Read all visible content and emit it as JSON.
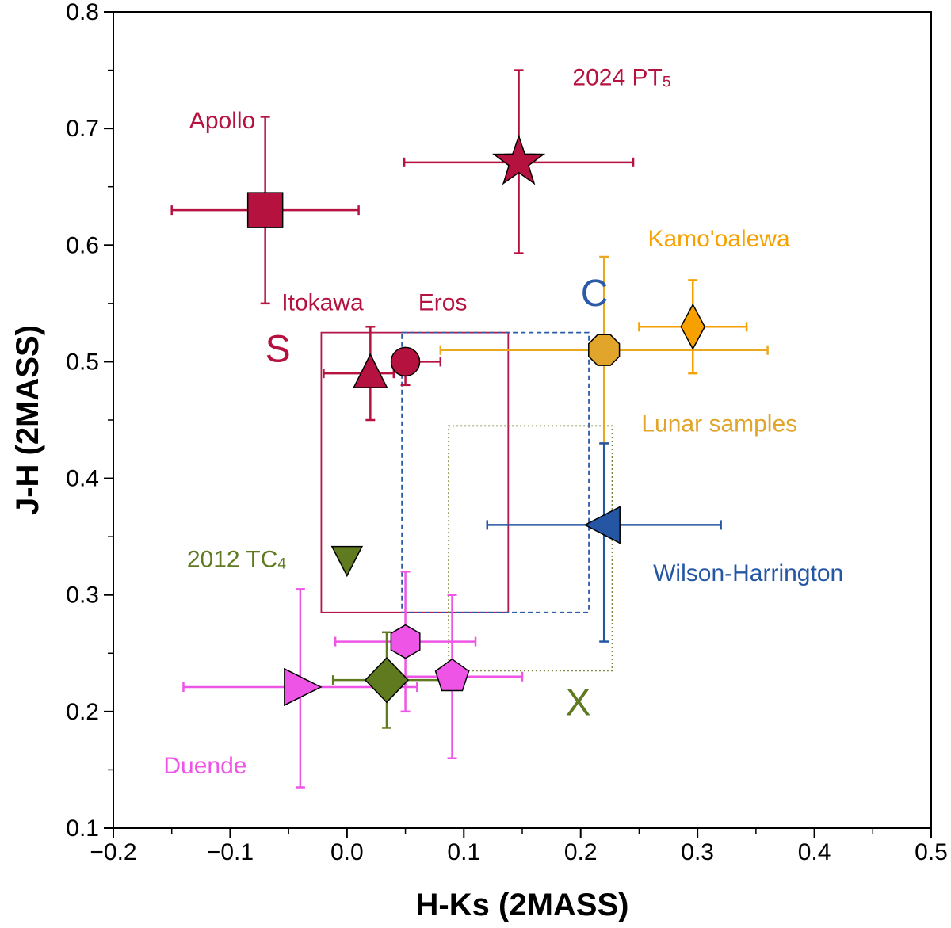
{
  "chart_data": {
    "type": "scatter",
    "xlabel": "H-Ks (2MASS)",
    "ylabel": "J-H (2MASS)",
    "xlim": [
      -0.2,
      0.5
    ],
    "ylim": [
      0.1,
      0.8
    ],
    "xticks": [
      -0.2,
      -0.1,
      0.0,
      0.1,
      0.2,
      0.3,
      0.4,
      0.5
    ],
    "xtick_labels": [
      "−0.2",
      "−0.1",
      "0.0",
      "0.1",
      "0.2",
      "0.3",
      "0.4",
      "0.5"
    ],
    "yticks": [
      0.1,
      0.2,
      0.3,
      0.4,
      0.5,
      0.6,
      0.7,
      0.8
    ],
    "ytick_labels": [
      "0.1",
      "0.2",
      "0.3",
      "0.4",
      "0.5",
      "0.6",
      "0.7",
      "0.8"
    ],
    "grid": false,
    "regions": [
      {
        "id": "S",
        "x": [
          -0.022,
          0.138
        ],
        "y": [
          0.285,
          0.525
        ],
        "color": "#b5174a",
        "style": "solid"
      },
      {
        "id": "C",
        "x": [
          0.047,
          0.207
        ],
        "y": [
          0.285,
          0.525
        ],
        "color": "#2a5aa8",
        "style": "dashed"
      },
      {
        "id": "X",
        "x": [
          0.087,
          0.227
        ],
        "y": [
          0.235,
          0.445
        ],
        "color": "#7a8a3c",
        "style": "dotted"
      }
    ],
    "points": [
      {
        "id": "apollo",
        "x": -0.07,
        "y": 0.63,
        "xerr": [
          0.08,
          0.08
        ],
        "yerr": [
          0.08,
          0.08
        ],
        "marker": "square",
        "color": "#b5123f",
        "ecolor": "#b5123f"
      },
      {
        "id": "pt5",
        "x": 0.147,
        "y": 0.671,
        "xerr": [
          0.098,
          0.098
        ],
        "yerr": [
          0.078,
          0.079
        ],
        "marker": "star",
        "color": "#b5123f",
        "ecolor": "#b5123f"
      },
      {
        "id": "itokawa",
        "x": 0.02,
        "y": 0.49,
        "xerr": [
          0.04,
          0.02
        ],
        "yerr": [
          0.04,
          0.04
        ],
        "marker": "triangle-up",
        "color": "#b5123f",
        "ecolor": "#b5123f"
      },
      {
        "id": "eros",
        "x": 0.05,
        "y": 0.5,
        "xerr": [
          0.0,
          0.03
        ],
        "yerr": [
          0.02,
          0.0
        ],
        "marker": "circle",
        "color": "#b5123f",
        "ecolor": "#b5123f"
      },
      {
        "id": "lunar",
        "x": 0.22,
        "y": 0.51,
        "xerr": [
          0.14,
          0.14
        ],
        "yerr": [
          0.08,
          0.08
        ],
        "marker": "octagon",
        "color": "#e0a52a",
        "ecolor": "#e8a820"
      },
      {
        "id": "kamooalewa",
        "x": 0.296,
        "y": 0.53,
        "xerr": [
          0.046,
          0.046
        ],
        "yerr": [
          0.04,
          0.04
        ],
        "marker": "diamond",
        "color": "#f6a100",
        "ecolor": "#f6a100"
      },
      {
        "id": "wh",
        "x": 0.22,
        "y": 0.36,
        "xerr": [
          0.1,
          0.1
        ],
        "yerr": [
          0.1,
          0.07
        ],
        "marker": "triangle-left",
        "color": "#2456a4",
        "ecolor": "#2456a4"
      },
      {
        "id": "tc4",
        "x": 0.0,
        "y": 0.33,
        "xerr": [
          0,
          0
        ],
        "yerr": [
          0,
          0
        ],
        "marker": "triangle-down",
        "color": "#5f7a1f",
        "ecolor": "#5f7a1f"
      },
      {
        "id": "duende_hex",
        "x": 0.05,
        "y": 0.26,
        "xerr": [
          0.06,
          0.06
        ],
        "yerr": [
          0.06,
          0.06
        ],
        "marker": "hexagon",
        "color": "#ee55e6",
        "ecolor": "#ee55e6"
      },
      {
        "id": "duende_pent",
        "x": 0.09,
        "y": 0.23,
        "xerr": [
          0.06,
          0.06
        ],
        "yerr": [
          0.07,
          0.07
        ],
        "marker": "pentagon",
        "color": "#ee55e6",
        "ecolor": "#ee55e6"
      },
      {
        "id": "duende_tri",
        "x": -0.04,
        "y": 0.221,
        "xerr": [
          0.1,
          0.1
        ],
        "yerr": [
          0.086,
          0.084
        ],
        "marker": "triangle-right",
        "color": "#ee55e6",
        "ecolor": "#ee55e6"
      },
      {
        "id": "x_diamond",
        "x": 0.034,
        "y": 0.227,
        "xerr": [
          0.046,
          0.046
        ],
        "yerr": [
          0.041,
          0.041
        ],
        "marker": "diamond-big",
        "color": "#5f7a1f",
        "ecolor": "#5f7a1f"
      }
    ],
    "annotations": [
      {
        "id": "apollo-label",
        "text": "Apollo",
        "x": -0.135,
        "y": 0.7,
        "color": "#b5123f",
        "size": 30
      },
      {
        "id": "pt5-label",
        "text": "2024 PT",
        "sub": "5",
        "x": 0.193,
        "y": 0.737,
        "color": "#b5123f",
        "size": 30
      },
      {
        "id": "itokawa-label",
        "text": "Itokawa",
        "x": -0.056,
        "y": 0.544,
        "color": "#b5123f",
        "size": 30
      },
      {
        "id": "eros-label",
        "text": "Eros",
        "x": 0.061,
        "y": 0.544,
        "color": "#b5123f",
        "size": 30
      },
      {
        "id": "s-label",
        "text": "S",
        "x": -0.07,
        "y": 0.5,
        "color": "#b5123f",
        "size": 48
      },
      {
        "id": "c-label",
        "text": "C",
        "x": 0.2,
        "y": 0.548,
        "color": "#2a5aa8",
        "size": 48
      },
      {
        "id": "kamooalewa-label",
        "text": "Kamo'oalewa",
        "x": 0.2575,
        "y": 0.599,
        "color": "#f6a100",
        "size": 30
      },
      {
        "id": "lunar-label",
        "text": "Lunar samples",
        "x": 0.252,
        "y": 0.44,
        "color": "#e0a52a",
        "size": 30
      },
      {
        "id": "wh-label",
        "text": "Wilson-Harrington",
        "x": 0.262,
        "y": 0.312,
        "color": "#2456a4",
        "size": 30
      },
      {
        "id": "tc4-label",
        "text": "2012 TC",
        "sub": "4",
        "x": -0.137,
        "y": 0.324,
        "color": "#5f7a1f",
        "size": 30
      },
      {
        "id": "x-label",
        "text": "X",
        "x": 0.187,
        "y": 0.197,
        "color": "#5f7a1f",
        "size": 48
      },
      {
        "id": "duende-label",
        "text": "Duende",
        "x": -0.157,
        "y": 0.147,
        "color": "#ee55e6",
        "size": 30
      }
    ]
  }
}
